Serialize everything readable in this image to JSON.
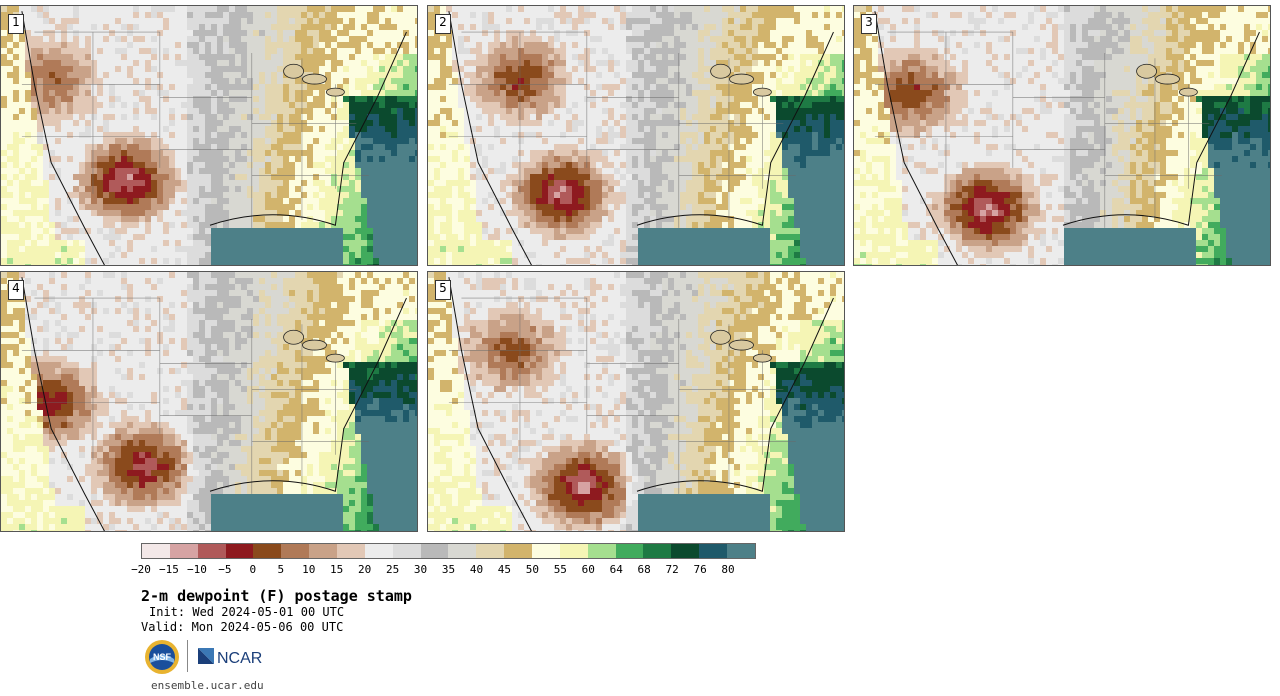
{
  "members": [
    {
      "label": "1",
      "dry_centers": [
        [
          0.3,
          0.67,
          1.0
        ],
        [
          0.12,
          0.28,
          0.55
        ]
      ],
      "moist_axis": 0.45
    },
    {
      "label": "2",
      "dry_centers": [
        [
          0.32,
          0.72,
          1.0
        ],
        [
          0.22,
          0.28,
          0.7
        ]
      ],
      "moist_axis": 0.48
    },
    {
      "label": "3",
      "dry_centers": [
        [
          0.32,
          0.78,
          1.0
        ],
        [
          0.14,
          0.33,
          0.7
        ]
      ],
      "moist_axis": 0.5
    },
    {
      "label": "4",
      "dry_centers": [
        [
          0.34,
          0.74,
          0.9
        ],
        [
          0.12,
          0.5,
          0.8
        ]
      ],
      "moist_axis": 0.45
    },
    {
      "label": "5",
      "dry_centers": [
        [
          0.37,
          0.82,
          1.0
        ],
        [
          0.2,
          0.3,
          0.6
        ]
      ],
      "moist_axis": 0.47
    }
  ],
  "colorbar": {
    "colors": [
      "#f3e8e8",
      "#d6a3a3",
      "#b05a5a",
      "#8e1a1f",
      "#8a4a1c",
      "#b07a58",
      "#c9a288",
      "#e2c8b6",
      "#ececec",
      "#dcdcdc",
      "#b9b9b9",
      "#d8d8d2",
      "#e3d6b0",
      "#d2b46c",
      "#fdfde0",
      "#f5f5b5",
      "#a5df8f",
      "#41ab5d",
      "#1e7a44",
      "#0b4a2e",
      "#1f5a6a",
      "#4d8088"
    ],
    "tick_labels": [
      "-20",
      "-15",
      "-10",
      "-5",
      "0",
      "5",
      "10",
      "15",
      "20",
      "25",
      "30",
      "35",
      "40",
      "45",
      "50",
      "55",
      "60",
      "64",
      "68",
      "72",
      "76",
      "80"
    ]
  },
  "title": "2-m dewpoint (F) postage stamp",
  "init": "Init: Wed 2024-05-01 00 UTC",
  "valid": "Valid: Mon 2024-05-06 00 UTC",
  "website": "ensemble.ucar.edu",
  "logos": {
    "nsf": "NSF",
    "ncar": "NCAR"
  }
}
